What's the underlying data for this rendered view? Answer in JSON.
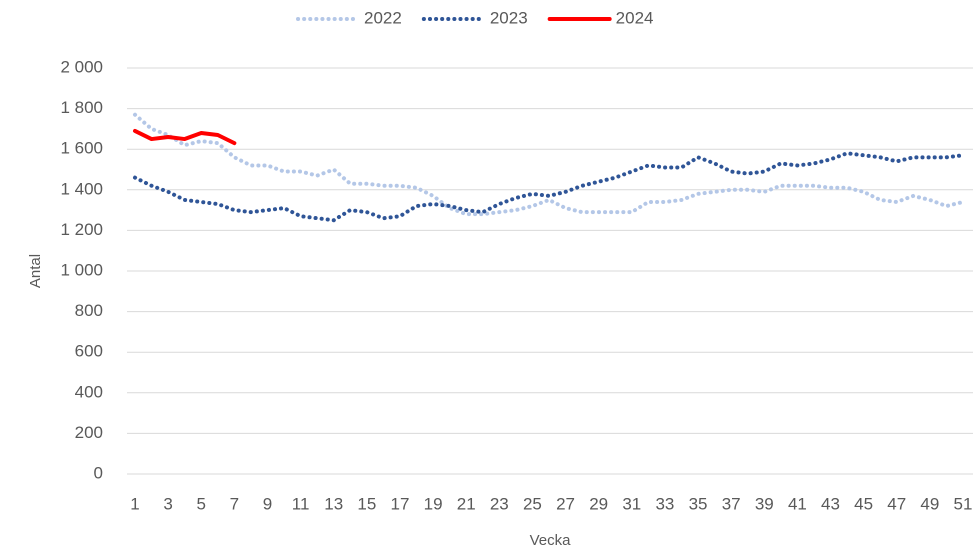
{
  "chart_data": {
    "type": "line",
    "x_label": "Vecka",
    "y_label": "Antal",
    "categories": [
      1,
      null,
      3,
      null,
      5,
      null,
      7,
      null,
      9,
      null,
      11,
      null,
      13,
      null,
      15,
      null,
      17,
      null,
      19,
      null,
      21,
      null,
      23,
      null,
      25,
      null,
      27,
      null,
      29,
      null,
      31,
      null,
      33,
      null,
      35,
      null,
      37,
      null,
      39,
      null,
      41,
      null,
      43,
      null,
      45,
      null,
      47,
      null,
      49,
      null,
      51
    ],
    "series": [
      {
        "name": "2022",
        "color": "#b4c7e7",
        "dash": "dot",
        "values": [
          1770,
          1700,
          1670,
          1620,
          1640,
          1630,
          1560,
          1520,
          1520,
          1490,
          1490,
          1470,
          1500,
          1430,
          1430,
          1420,
          1420,
          1410,
          1370,
          1310,
          1280,
          1280,
          1290,
          1300,
          1320,
          1350,
          1310,
          1290,
          1290,
          1290,
          1290,
          1340,
          1340,
          1350,
          1380,
          1390,
          1400,
          1400,
          1390,
          1420,
          1420,
          1420,
          1410,
          1410,
          1390,
          1350,
          1340,
          1370,
          1350,
          1320,
          1340
        ]
      },
      {
        "name": "2023",
        "color": "#2f5597",
        "dash": "dot",
        "values": [
          1460,
          1420,
          1390,
          1350,
          1340,
          1330,
          1300,
          1290,
          1300,
          1310,
          1270,
          1260,
          1250,
          1300,
          1290,
          1260,
          1270,
          1320,
          1330,
          1320,
          1300,
          1290,
          1330,
          1360,
          1380,
          1370,
          1390,
          1420,
          1440,
          1460,
          1490,
          1520,
          1510,
          1510,
          1560,
          1530,
          1490,
          1480,
          1490,
          1530,
          1520,
          1530,
          1550,
          1580,
          1570,
          1560,
          1540,
          1560,
          1560,
          1560,
          1570
        ]
      },
      {
        "name": "2024",
        "color": "#ff0000",
        "dash": "solid",
        "values": [
          1690,
          1650,
          1660,
          1650,
          1680,
          1670,
          1630,
          null,
          null,
          null,
          null,
          null,
          null,
          null,
          null,
          null,
          null,
          null,
          null,
          null,
          null,
          null,
          null,
          null,
          null,
          null,
          null,
          null,
          null,
          null,
          null,
          null,
          null,
          null,
          null,
          null,
          null,
          null,
          null,
          null,
          null,
          null,
          null,
          null,
          null,
          null,
          null,
          null,
          null,
          null,
          null
        ]
      }
    ],
    "ylim": [
      0,
      2000
    ],
    "yticks": [
      0,
      200,
      400,
      600,
      800,
      {
        "value": 1000,
        "label": "1 000"
      },
      {
        "value": 1200,
        "label": "1 200"
      },
      {
        "value": 1400,
        "label": "1 400"
      },
      {
        "value": 1600,
        "label": "1 600"
      },
      {
        "value": 1800,
        "label": "1 800"
      },
      {
        "value": 2000,
        "label": "2 000"
      }
    ],
    "grid": true,
    "legend": "top"
  }
}
